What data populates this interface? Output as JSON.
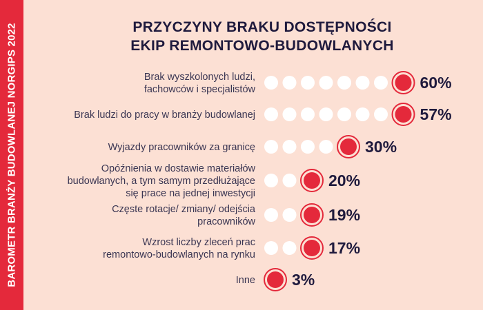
{
  "sidebar": {
    "text": "BAROMETR BRANŻY BUDOWLANEJ NORGIPS 2022"
  },
  "chart_data": {
    "type": "bar",
    "title": "PRZYCZYNY BRAKU DOSTĘPNOŚCI EKIP REMONTOWO-BUDOWLANYCH",
    "title_lines": [
      "PRZYCZYNY BRAKU DOSTĘPNOŚCI",
      "EKIP REMONTOWO-BUDOWLANYCH"
    ],
    "unit": "%",
    "categories": [
      "Brak wyszkolonych ludzi, fachowców i specjalistów",
      "Brak ludzi do pracy w branży budowlanej",
      "Wyjazdy pracowników za granicę",
      "Opóźnienia w dostawie materiałów budowlanych, a tym samym przedłużające się prace na jednej inwestycji",
      "Częste rotacje/ zmiany/ odejścia pracowników",
      "Wzrost liczby zleceń prac remontowo-budowlanych na rynku",
      "Inne"
    ],
    "category_lines": [
      [
        "Brak wyszkolonych ludzi,",
        "fachowców i specjalistów"
      ],
      [
        "Brak ludzi do pracy w branży budowlanej"
      ],
      [
        "Wyjazdy pracowników za granicę"
      ],
      [
        "Opóźnienia w dostawie materiałów",
        "budowlanych, a tym samym przedłużające",
        "się prace na jednej inwestycji"
      ],
      [
        "Częste rotacje/ zmiany/ odejścia",
        "pracowników"
      ],
      [
        "Wzrost liczby zleceń prac",
        "remontowo-budowlanych na rynku"
      ],
      [
        "Inne"
      ]
    ],
    "values": [
      60,
      57,
      30,
      20,
      19,
      17,
      3
    ],
    "value_labels": [
      "60%",
      "57%",
      "30%",
      "20%",
      "19%",
      "17%",
      "3%"
    ],
    "colors": {
      "accent": "#e4293b",
      "dot": "#ffffff",
      "text": "#1f1a3d",
      "background": "#fce0d4"
    }
  }
}
